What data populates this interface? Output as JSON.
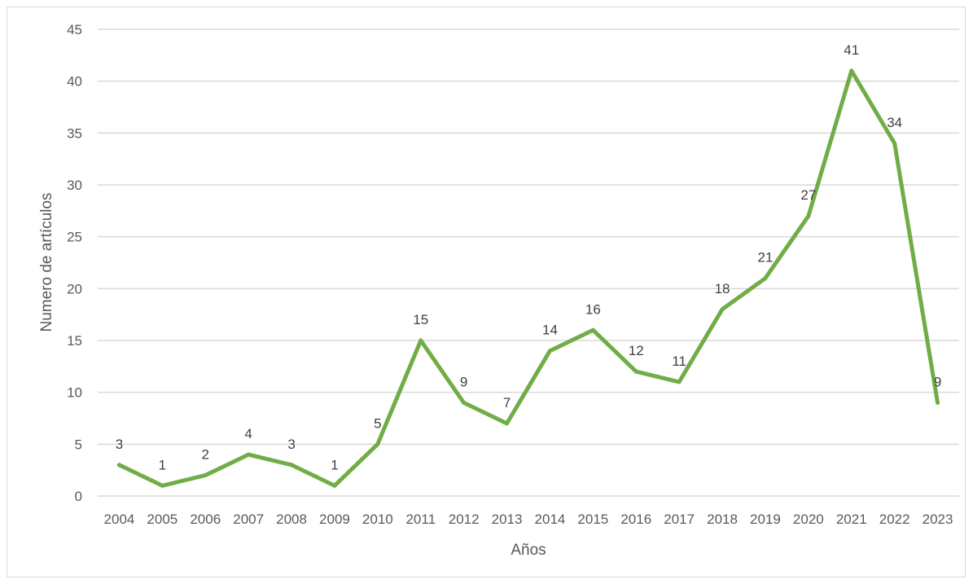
{
  "chart_data": {
    "type": "line",
    "xlabel": "Años",
    "ylabel": "Numero de artículos",
    "ylim": [
      0,
      45
    ],
    "yticks": [
      0,
      5,
      10,
      15,
      20,
      25,
      30,
      35,
      40,
      45
    ],
    "grid": true,
    "data_labels": true,
    "categories": [
      "2004",
      "2005",
      "2006",
      "2007",
      "2008",
      "2009",
      "2010",
      "2011",
      "2012",
      "2013",
      "2014",
      "2015",
      "2016",
      "2017",
      "2018",
      "2019",
      "2020",
      "2021",
      "2022",
      "2023"
    ],
    "series": [
      {
        "color": "#70ad47",
        "values": [
          3,
          1,
          2,
          4,
          3,
          1,
          5,
          15,
          9,
          7,
          14,
          16,
          12,
          11,
          18,
          21,
          27,
          41,
          34,
          9
        ]
      }
    ]
  }
}
